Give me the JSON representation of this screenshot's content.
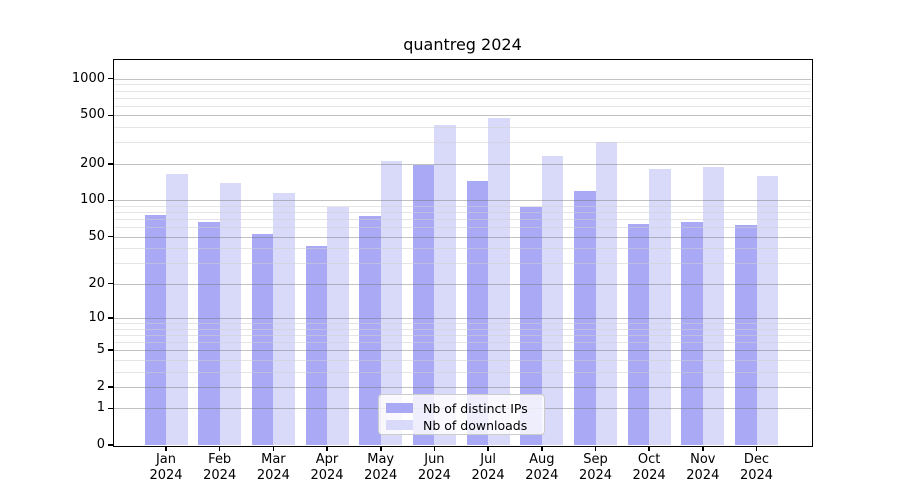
{
  "chart_data": {
    "type": "bar",
    "title": "quantreg 2024",
    "categories": [
      "Jan 2024",
      "Feb 2024",
      "Mar 2024",
      "Apr 2024",
      "May 2024",
      "Jun 2024",
      "Jul 2024",
      "Aug 2024",
      "Sep 2024",
      "Oct 2024",
      "Nov 2024",
      "Dec 2024"
    ],
    "series": [
      {
        "name": "Nb of distinct IPs",
        "color": "#a9a9f5",
        "values": [
          75,
          66,
          53,
          42,
          74,
          195,
          145,
          88,
          120,
          64,
          66,
          62
        ]
      },
      {
        "name": "Nb of downloads",
        "color": "#d9d9fa",
        "values": [
          165,
          138,
          116,
          88,
          212,
          420,
          480,
          230,
          300,
          180,
          190,
          158
        ]
      }
    ],
    "yscale": "log1p",
    "yticks": [
      0,
      1,
      2,
      5,
      10,
      20,
      50,
      100,
      200,
      500,
      1000
    ],
    "minor_yticks": [
      3,
      4,
      6,
      7,
      8,
      9,
      30,
      40,
      60,
      70,
      80,
      90,
      300,
      400,
      600,
      700,
      800,
      900
    ],
    "ylim": [
      0,
      1422
    ],
    "xlabel": "",
    "ylabel": "",
    "grid": true,
    "legend_position": "lower center",
    "colors": {
      "bar_distinct_ips": "#a9a9f5",
      "bar_downloads": "#d9d9fa",
      "spine": "#000000",
      "background": "#ffffff"
    }
  }
}
